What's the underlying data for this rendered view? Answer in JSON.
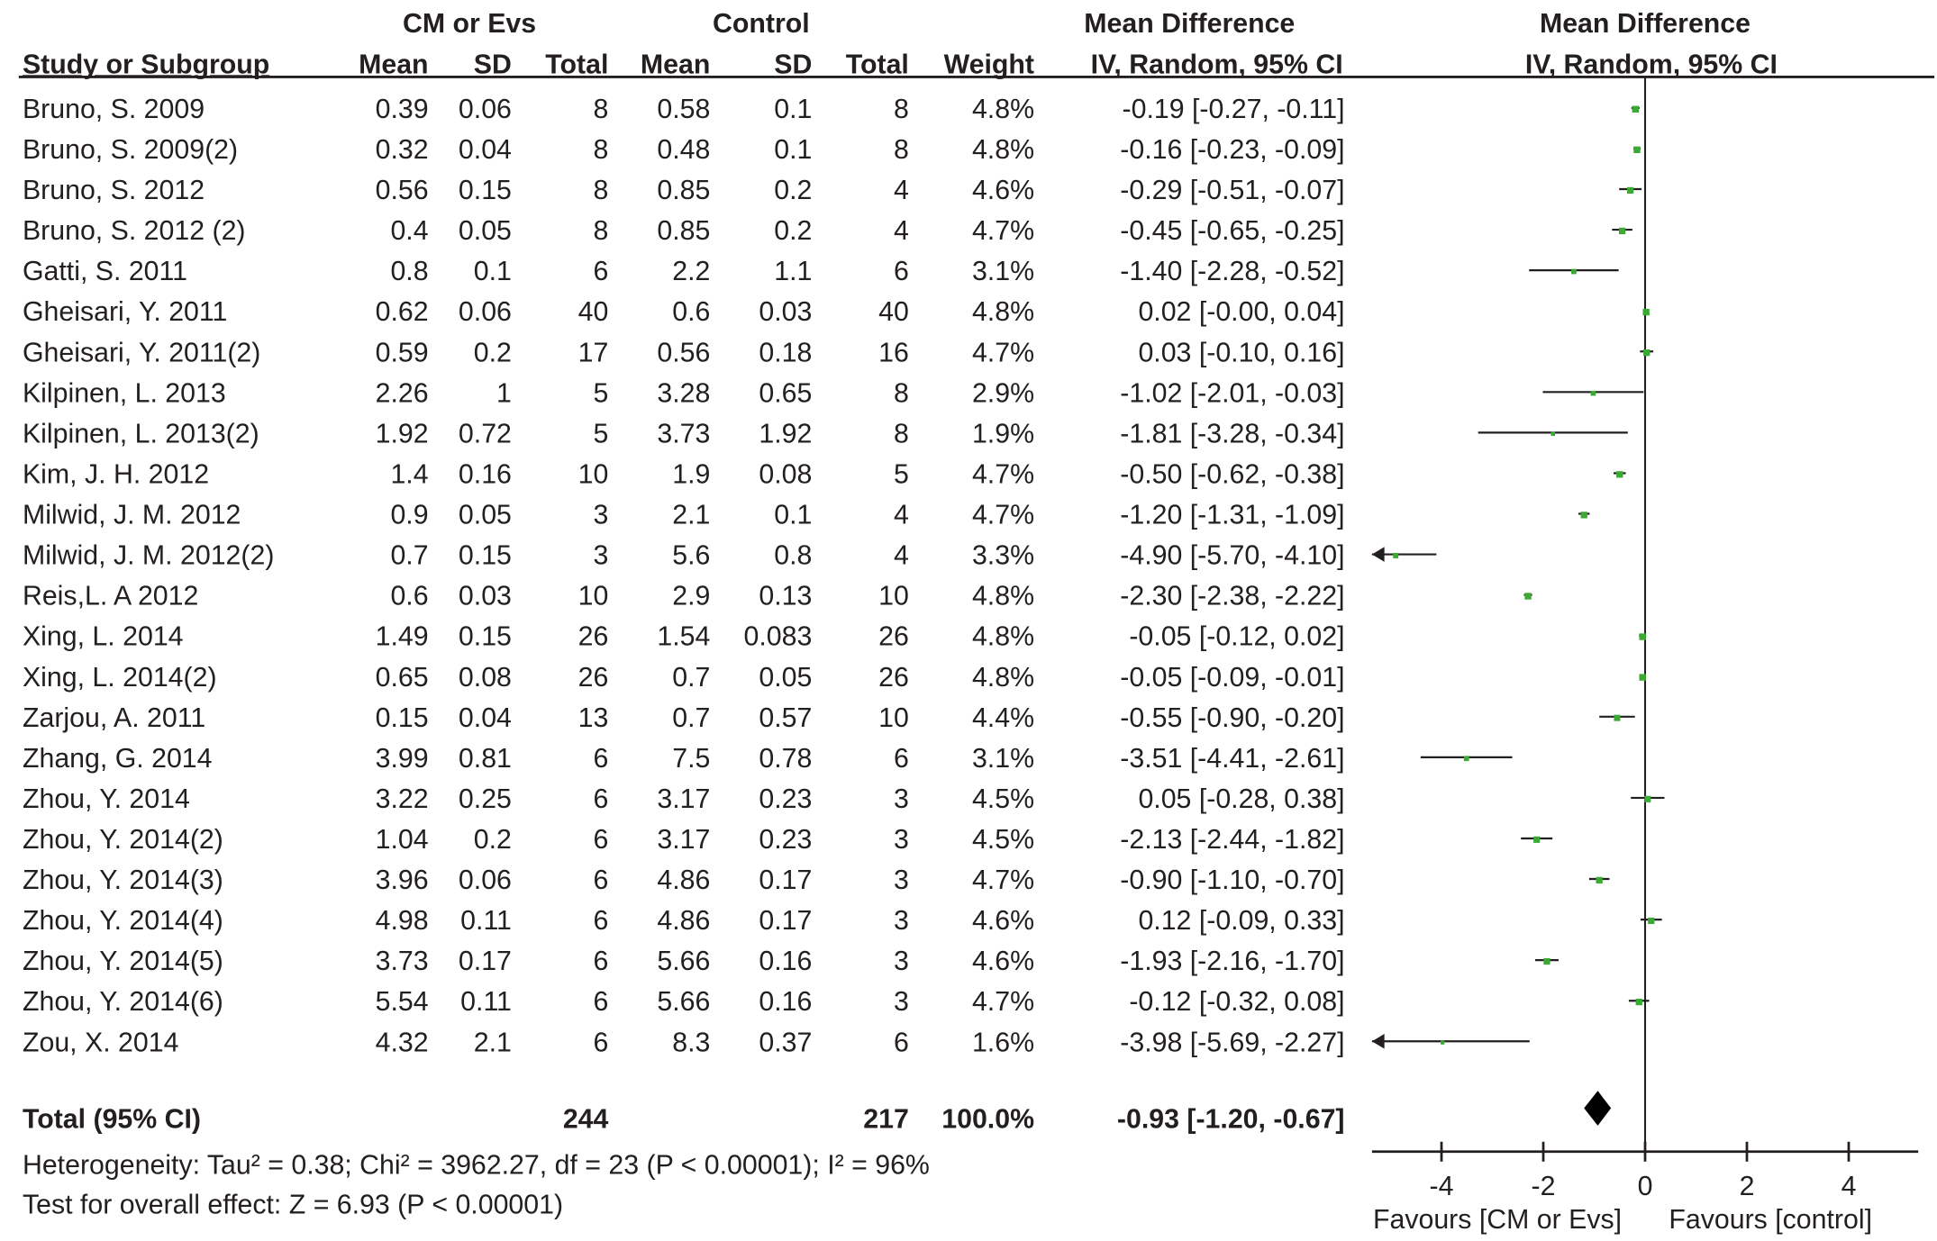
{
  "chart_data": {
    "type": "forest",
    "group_headers": {
      "experimental": "CM or Evs",
      "control": "Control",
      "md_table": "Mean Difference",
      "md_plot": "Mean Difference"
    },
    "columns": [
      "Study or Subgroup",
      "Mean",
      "SD",
      "Total",
      "Mean",
      "SD",
      "Total",
      "Weight",
      "IV, Random, 95% CI",
      "IV, Random, 95% CI"
    ],
    "studies": [
      {
        "name": "Bruno, S. 2009",
        "m1": "0.39",
        "sd1": "0.06",
        "n1": "8",
        "m2": "0.58",
        "sd2": "0.1",
        "n2": "8",
        "weight": "4.8%",
        "ci_text": "-0.19 [-0.27, -0.11]",
        "md": -0.19,
        "lo": -0.27,
        "hi": -0.11
      },
      {
        "name": "Bruno, S. 2009(2)",
        "m1": "0.32",
        "sd1": "0.04",
        "n1": "8",
        "m2": "0.48",
        "sd2": "0.1",
        "n2": "8",
        "weight": "4.8%",
        "ci_text": "-0.16 [-0.23, -0.09]",
        "md": -0.16,
        "lo": -0.23,
        "hi": -0.09
      },
      {
        "name": "Bruno, S. 2012",
        "m1": "0.56",
        "sd1": "0.15",
        "n1": "8",
        "m2": "0.85",
        "sd2": "0.2",
        "n2": "4",
        "weight": "4.6%",
        "ci_text": "-0.29 [-0.51, -0.07]",
        "md": -0.29,
        "lo": -0.51,
        "hi": -0.07
      },
      {
        "name": "Bruno, S. 2012 (2)",
        "m1": "0.4",
        "sd1": "0.05",
        "n1": "8",
        "m2": "0.85",
        "sd2": "0.2",
        "n2": "4",
        "weight": "4.7%",
        "ci_text": "-0.45 [-0.65, -0.25]",
        "md": -0.45,
        "lo": -0.65,
        "hi": -0.25
      },
      {
        "name": "Gatti, S. 2011",
        "m1": "0.8",
        "sd1": "0.1",
        "n1": "6",
        "m2": "2.2",
        "sd2": "1.1",
        "n2": "6",
        "weight": "3.1%",
        "ci_text": "-1.40 [-2.28, -0.52]",
        "md": -1.4,
        "lo": -2.28,
        "hi": -0.52
      },
      {
        "name": "Gheisari, Y. 2011",
        "m1": "0.62",
        "sd1": "0.06",
        "n1": "40",
        "m2": "0.6",
        "sd2": "0.03",
        "n2": "40",
        "weight": "4.8%",
        "ci_text": "0.02 [-0.00, 0.04]",
        "md": 0.02,
        "lo": 0.0,
        "hi": 0.04
      },
      {
        "name": "Gheisari, Y. 2011(2)",
        "m1": "0.59",
        "sd1": "0.2",
        "n1": "17",
        "m2": "0.56",
        "sd2": "0.18",
        "n2": "16",
        "weight": "4.7%",
        "ci_text": "0.03 [-0.10, 0.16]",
        "md": 0.03,
        "lo": -0.1,
        "hi": 0.16
      },
      {
        "name": "Kilpinen, L. 2013",
        "m1": "2.26",
        "sd1": "1",
        "n1": "5",
        "m2": "3.28",
        "sd2": "0.65",
        "n2": "8",
        "weight": "2.9%",
        "ci_text": "-1.02 [-2.01, -0.03]",
        "md": -1.02,
        "lo": -2.01,
        "hi": -0.03
      },
      {
        "name": "Kilpinen, L. 2013(2)",
        "m1": "1.92",
        "sd1": "0.72",
        "n1": "5",
        "m2": "3.73",
        "sd2": "1.92",
        "n2": "8",
        "weight": "1.9%",
        "ci_text": "-1.81 [-3.28, -0.34]",
        "md": -1.81,
        "lo": -3.28,
        "hi": -0.34
      },
      {
        "name": "Kim, J. H. 2012",
        "m1": "1.4",
        "sd1": "0.16",
        "n1": "10",
        "m2": "1.9",
        "sd2": "0.08",
        "n2": "5",
        "weight": "4.7%",
        "ci_text": "-0.50 [-0.62, -0.38]",
        "md": -0.5,
        "lo": -0.62,
        "hi": -0.38
      },
      {
        "name": "Milwid, J. M. 2012",
        "m1": "0.9",
        "sd1": "0.05",
        "n1": "3",
        "m2": "2.1",
        "sd2": "0.1",
        "n2": "4",
        "weight": "4.7%",
        "ci_text": "-1.20 [-1.31, -1.09]",
        "md": -1.2,
        "lo": -1.31,
        "hi": -1.09
      },
      {
        "name": "Milwid, J. M. 2012(2)",
        "m1": "0.7",
        "sd1": "0.15",
        "n1": "3",
        "m2": "5.6",
        "sd2": "0.8",
        "n2": "4",
        "weight": "3.3%",
        "ci_text": "-4.90 [-5.70, -4.10]",
        "md": -4.9,
        "lo": -5.7,
        "hi": -4.1
      },
      {
        "name": "Reis,L. A 2012",
        "m1": "0.6",
        "sd1": "0.03",
        "n1": "10",
        "m2": "2.9",
        "sd2": "0.13",
        "n2": "10",
        "weight": "4.8%",
        "ci_text": "-2.30 [-2.38, -2.22]",
        "md": -2.3,
        "lo": -2.38,
        "hi": -2.22
      },
      {
        "name": "Xing, L. 2014",
        "m1": "1.49",
        "sd1": "0.15",
        "n1": "26",
        "m2": "1.54",
        "sd2": "0.083",
        "n2": "26",
        "weight": "4.8%",
        "ci_text": "-0.05 [-0.12, 0.02]",
        "md": -0.05,
        "lo": -0.12,
        "hi": 0.02
      },
      {
        "name": "Xing, L. 2014(2)",
        "m1": "0.65",
        "sd1": "0.08",
        "n1": "26",
        "m2": "0.7",
        "sd2": "0.05",
        "n2": "26",
        "weight": "4.8%",
        "ci_text": "-0.05 [-0.09, -0.01]",
        "md": -0.05,
        "lo": -0.09,
        "hi": -0.01
      },
      {
        "name": "Zarjou, A.  2011",
        "m1": "0.15",
        "sd1": "0.04",
        "n1": "13",
        "m2": "0.7",
        "sd2": "0.57",
        "n2": "10",
        "weight": "4.4%",
        "ci_text": "-0.55 [-0.90, -0.20]",
        "md": -0.55,
        "lo": -0.9,
        "hi": -0.2
      },
      {
        "name": "Zhang, G.  2014",
        "m1": "3.99",
        "sd1": "0.81",
        "n1": "6",
        "m2": "7.5",
        "sd2": "0.78",
        "n2": "6",
        "weight": "3.1%",
        "ci_text": "-3.51 [-4.41, -2.61]",
        "md": -3.51,
        "lo": -4.41,
        "hi": -2.61
      },
      {
        "name": "Zhou, Y. 2014",
        "m1": "3.22",
        "sd1": "0.25",
        "n1": "6",
        "m2": "3.17",
        "sd2": "0.23",
        "n2": "3",
        "weight": "4.5%",
        "ci_text": "0.05 [-0.28, 0.38]",
        "md": 0.05,
        "lo": -0.28,
        "hi": 0.38
      },
      {
        "name": "Zhou, Y. 2014(2)",
        "m1": "1.04",
        "sd1": "0.2",
        "n1": "6",
        "m2": "3.17",
        "sd2": "0.23",
        "n2": "3",
        "weight": "4.5%",
        "ci_text": "-2.13 [-2.44, -1.82]",
        "md": -2.13,
        "lo": -2.44,
        "hi": -1.82
      },
      {
        "name": "Zhou, Y. 2014(3)",
        "m1": "3.96",
        "sd1": "0.06",
        "n1": "6",
        "m2": "4.86",
        "sd2": "0.17",
        "n2": "3",
        "weight": "4.7%",
        "ci_text": "-0.90 [-1.10, -0.70]",
        "md": -0.9,
        "lo": -1.1,
        "hi": -0.7
      },
      {
        "name": "Zhou, Y. 2014(4)",
        "m1": "4.98",
        "sd1": "0.11",
        "n1": "6",
        "m2": "4.86",
        "sd2": "0.17",
        "n2": "3",
        "weight": "4.6%",
        "ci_text": "0.12 [-0.09, 0.33]",
        "md": 0.12,
        "lo": -0.09,
        "hi": 0.33
      },
      {
        "name": "Zhou, Y. 2014(5)",
        "m1": "3.73",
        "sd1": "0.17",
        "n1": "6",
        "m2": "5.66",
        "sd2": "0.16",
        "n2": "3",
        "weight": "4.6%",
        "ci_text": "-1.93 [-2.16, -1.70]",
        "md": -1.93,
        "lo": -2.16,
        "hi": -1.7
      },
      {
        "name": "Zhou, Y. 2014(6)",
        "m1": "5.54",
        "sd1": "0.11",
        "n1": "6",
        "m2": "5.66",
        "sd2": "0.16",
        "n2": "3",
        "weight": "4.7%",
        "ci_text": "-0.12 [-0.32, 0.08]",
        "md": -0.12,
        "lo": -0.32,
        "hi": 0.08
      },
      {
        "name": "Zou, X. 2014",
        "m1": "4.32",
        "sd1": "2.1",
        "n1": "6",
        "m2": "8.3",
        "sd2": "0.37",
        "n2": "6",
        "weight": "1.6%",
        "ci_text": "-3.98 [-5.69, -2.27]",
        "md": -3.98,
        "lo": -5.69,
        "hi": -2.27
      }
    ],
    "total": {
      "label": "Total (95% CI)",
      "n1": "244",
      "n2": "217",
      "weight": "100.0%",
      "ci_text": "-0.93 [-1.20, -0.67]",
      "md": -0.93,
      "lo": -1.2,
      "hi": -0.67
    },
    "heterogeneity": "Heterogeneity: Tau² = 0.38; Chi² = 3962.27, df = 23 (P < 0.00001); I² = 96%",
    "overall_effect": "Test for overall effect: Z = 6.93 (P < 0.00001)",
    "x_ticks": [
      "-4",
      "-2",
      "0",
      "2",
      "4"
    ],
    "x_tick_values": [
      -4,
      -2,
      0,
      2,
      4
    ],
    "xlim": [
      -5.4,
      5.4
    ],
    "xlabel_left": "Favours [CM or Evs]",
    "xlabel_right": "Favours [control]",
    "colors": {
      "square": "#3aaa35",
      "line": "#231f20",
      "diamond": "#000000"
    }
  }
}
